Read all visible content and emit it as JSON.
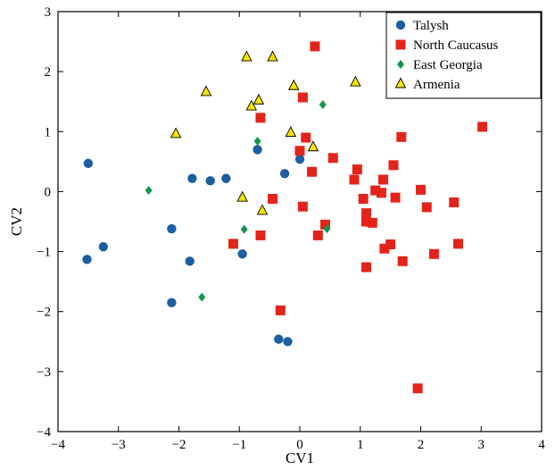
{
  "chart_data": {
    "type": "scatter",
    "xlabel": "CV1",
    "ylabel": "CV2",
    "xlim": [
      -4,
      4
    ],
    "ylim": [
      -4,
      3
    ],
    "y_axis_inverted": true,
    "grid": false,
    "legend_position": "top-right",
    "x_ticks": [
      "−4",
      "−3",
      "−2",
      "−1",
      "0",
      "1",
      "2",
      "3",
      "4"
    ],
    "y_ticks": [
      "−4",
      "−3",
      "−2",
      "−1",
      "0",
      "1",
      "2",
      "3"
    ],
    "series": [
      {
        "name": "Talysh",
        "marker": "circle",
        "color": "#1c5fa0",
        "points": [
          [
            -3.5,
            0.47
          ],
          [
            -3.52,
            -1.13
          ],
          [
            -3.25,
            -0.92
          ],
          [
            -2.12,
            -0.62
          ],
          [
            -2.12,
            -1.85
          ],
          [
            -1.78,
            0.22
          ],
          [
            -1.82,
            -1.16
          ],
          [
            -1.48,
            0.18
          ],
          [
            -1.22,
            0.22
          ],
          [
            -0.95,
            -1.04
          ],
          [
            -0.7,
            0.7
          ],
          [
            -0.25,
            0.3
          ],
          [
            0.0,
            0.54
          ],
          [
            -0.35,
            -2.46
          ],
          [
            -0.2,
            -2.5
          ]
        ]
      },
      {
        "name": "North Caucasus",
        "marker": "square",
        "color": "#e3241b",
        "points": [
          [
            0.25,
            2.42
          ],
          [
            0.05,
            1.57
          ],
          [
            -0.65,
            1.23
          ],
          [
            0.1,
            0.9
          ],
          [
            0.0,
            0.68
          ],
          [
            0.55,
            0.56
          ],
          [
            0.2,
            0.33
          ],
          [
            -0.45,
            -0.12
          ],
          [
            0.05,
            -0.25
          ],
          [
            -1.1,
            -0.87
          ],
          [
            -0.65,
            -0.73
          ],
          [
            0.3,
            -0.73
          ],
          [
            0.42,
            -0.55
          ],
          [
            -0.32,
            -1.98
          ],
          [
            0.95,
            0.37
          ],
          [
            0.9,
            0.2
          ],
          [
            1.05,
            -0.12
          ],
          [
            1.1,
            -0.36
          ],
          [
            1.1,
            -0.5
          ],
          [
            1.2,
            -0.52
          ],
          [
            1.25,
            0.02
          ],
          [
            1.35,
            -0.02
          ],
          [
            1.38,
            0.2
          ],
          [
            1.4,
            -0.95
          ],
          [
            1.5,
            -0.88
          ],
          [
            1.55,
            0.44
          ],
          [
            1.58,
            -0.1
          ],
          [
            1.68,
            0.91
          ],
          [
            1.7,
            -1.16
          ],
          [
            1.1,
            -1.26
          ],
          [
            2.0,
            0.03
          ],
          [
            2.1,
            -0.26
          ],
          [
            2.22,
            -1.04
          ],
          [
            2.55,
            -0.18
          ],
          [
            2.62,
            -0.87
          ],
          [
            3.02,
            1.08
          ],
          [
            1.95,
            -3.28
          ]
        ]
      },
      {
        "name": "East Georgia",
        "marker": "diamond",
        "color": "#12964a",
        "points": [
          [
            -2.5,
            0.02
          ],
          [
            -0.7,
            0.84
          ],
          [
            -0.92,
            -0.63
          ],
          [
            -1.62,
            -1.76
          ],
          [
            0.38,
            1.45
          ],
          [
            0.45,
            -0.62
          ]
        ]
      },
      {
        "name": "Armenia",
        "marker": "triangle",
        "color": "#f5e400",
        "points": [
          [
            -2.05,
            0.96
          ],
          [
            -1.55,
            1.66
          ],
          [
            -0.88,
            2.24
          ],
          [
            -0.45,
            2.24
          ],
          [
            -0.8,
            1.42
          ],
          [
            -0.68,
            1.52
          ],
          [
            -0.1,
            1.76
          ],
          [
            0.92,
            1.82
          ],
          [
            -0.15,
            0.98
          ],
          [
            0.22,
            0.74
          ],
          [
            -0.95,
            -0.1
          ],
          [
            -0.62,
            -0.32
          ]
        ]
      }
    ]
  }
}
